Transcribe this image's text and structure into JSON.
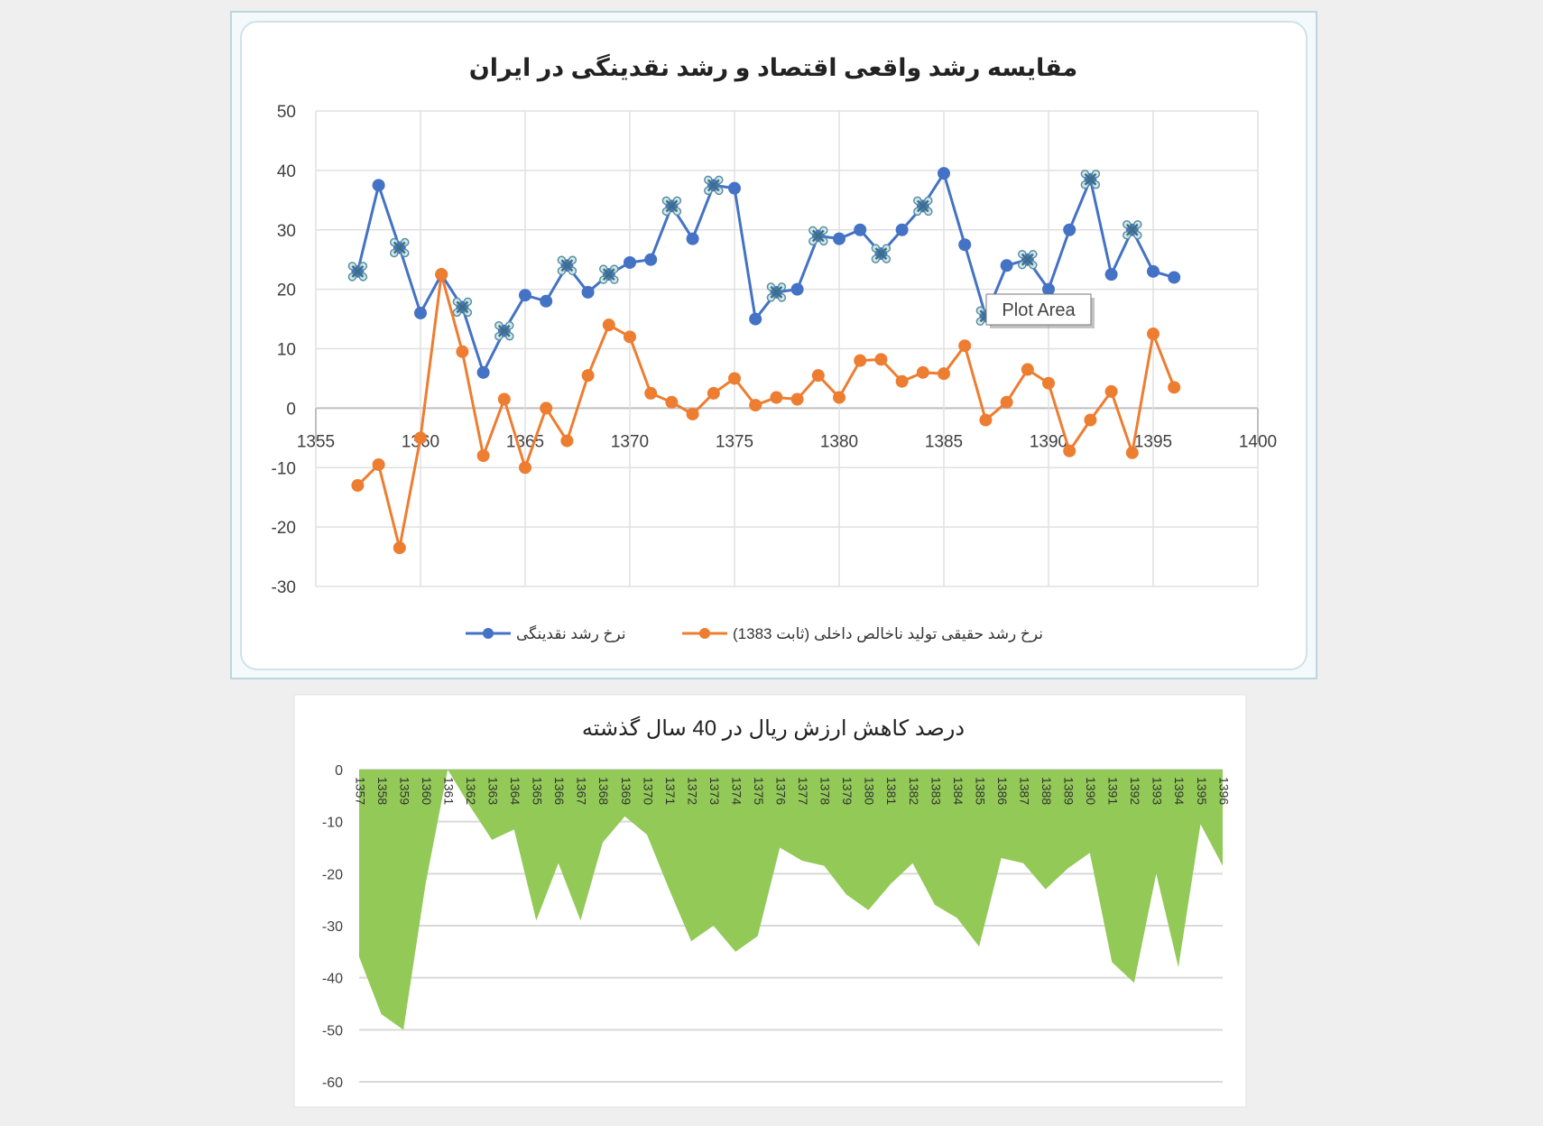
{
  "chart_data": [
    {
      "type": "line",
      "title": "مقایسه رشد واقعی اقتصاد و رشد نقدینگی در ایران",
      "xlabel": "",
      "ylabel": "",
      "xlim": [
        1355,
        1400
      ],
      "ylim": [
        -30,
        50
      ],
      "xticks": [
        1355,
        1360,
        1365,
        1370,
        1375,
        1380,
        1385,
        1390,
        1395,
        1400
      ],
      "yticks": [
        -30,
        -20,
        -10,
        0,
        10,
        20,
        30,
        40,
        50
      ],
      "grid": true,
      "legend": "bottom",
      "x": [
        1357,
        1358,
        1359,
        1360,
        1361,
        1362,
        1363,
        1364,
        1365,
        1366,
        1367,
        1368,
        1369,
        1370,
        1371,
        1372,
        1373,
        1374,
        1375,
        1376,
        1377,
        1378,
        1379,
        1380,
        1381,
        1382,
        1383,
        1384,
        1385,
        1386,
        1387,
        1388,
        1389,
        1390,
        1391,
        1392,
        1393,
        1394,
        1395,
        1396
      ],
      "series": [
        {
          "name": "نرخ رشد نقدینگی",
          "color": "#4472c4",
          "values": [
            23,
            37.5,
            27,
            16,
            22.5,
            17,
            6,
            13,
            19,
            18,
            24,
            19.5,
            22.5,
            24.5,
            25,
            34,
            28.5,
            37.5,
            37,
            15,
            19.5,
            20,
            29,
            28.5,
            30,
            26,
            30,
            34,
            39.5,
            27.5,
            15.5,
            24,
            25,
            20,
            30,
            38.5,
            22.5,
            30,
            23,
            22
          ]
        },
        {
          "name": "نرخ رشد حقیقی تولید ناخالص داخلی (ثابت 1383)",
          "color": "#ed7d31",
          "values": [
            -13,
            -9.5,
            -23.5,
            -5,
            22.5,
            9.5,
            -8,
            1.5,
            -10,
            0,
            -5.5,
            5.5,
            14,
            12,
            2.5,
            1,
            -1,
            2.5,
            5,
            0.5,
            1.8,
            1.5,
            5.5,
            1.8,
            8,
            8.2,
            4.5,
            6,
            5.8,
            10.5,
            -2,
            1,
            6.5,
            4.2,
            -7.2,
            -2,
            2.8,
            -7.5,
            12.5,
            3.5
          ]
        }
      ],
      "highlighted_markers": [
        1357,
        1359,
        1362,
        1364,
        1367,
        1369,
        1372,
        1374,
        1377,
        1379,
        1382,
        1384,
        1387,
        1389,
        1392,
        1394
      ],
      "tooltip": "Plot Area"
    },
    {
      "type": "area",
      "title": "درصد کاهش ارزش ریال در 40 سال گذشته",
      "xlabel": "",
      "ylabel": "",
      "ylim": [
        -60,
        0
      ],
      "yticks": [
        -60,
        -50,
        -40,
        -30,
        -20,
        -10,
        0
      ],
      "grid": true,
      "color": "#92c957",
      "categories": [
        "1357",
        "1358",
        "1359",
        "1360",
        "1361",
        "1362",
        "1363",
        "1364",
        "1365",
        "1366",
        "1367",
        "1368",
        "1369",
        "1370",
        "1371",
        "1372",
        "1373",
        "1374",
        "1375",
        "1376",
        "1377",
        "1378",
        "1379",
        "1380",
        "1381",
        "1382",
        "1383",
        "1384",
        "1385",
        "1386",
        "1387",
        "1388",
        "1389",
        "1390",
        "1391",
        "1392",
        "1393",
        "1394",
        "1395",
        "1396"
      ],
      "values": [
        -36,
        -47,
        -50,
        -22,
        0,
        -7,
        -13.5,
        -11.5,
        -29,
        -18,
        -29,
        -14,
        -9,
        -12.5,
        -23,
        -33,
        -30,
        -35,
        -32,
        -15,
        -17.5,
        -18.5,
        -24,
        -27,
        -22,
        -18,
        -26,
        -28.5,
        -34,
        -17,
        -18,
        -23,
        -19,
        -16,
        -37,
        -41,
        -20,
        -38,
        -10.5,
        -18.5
      ]
    }
  ]
}
